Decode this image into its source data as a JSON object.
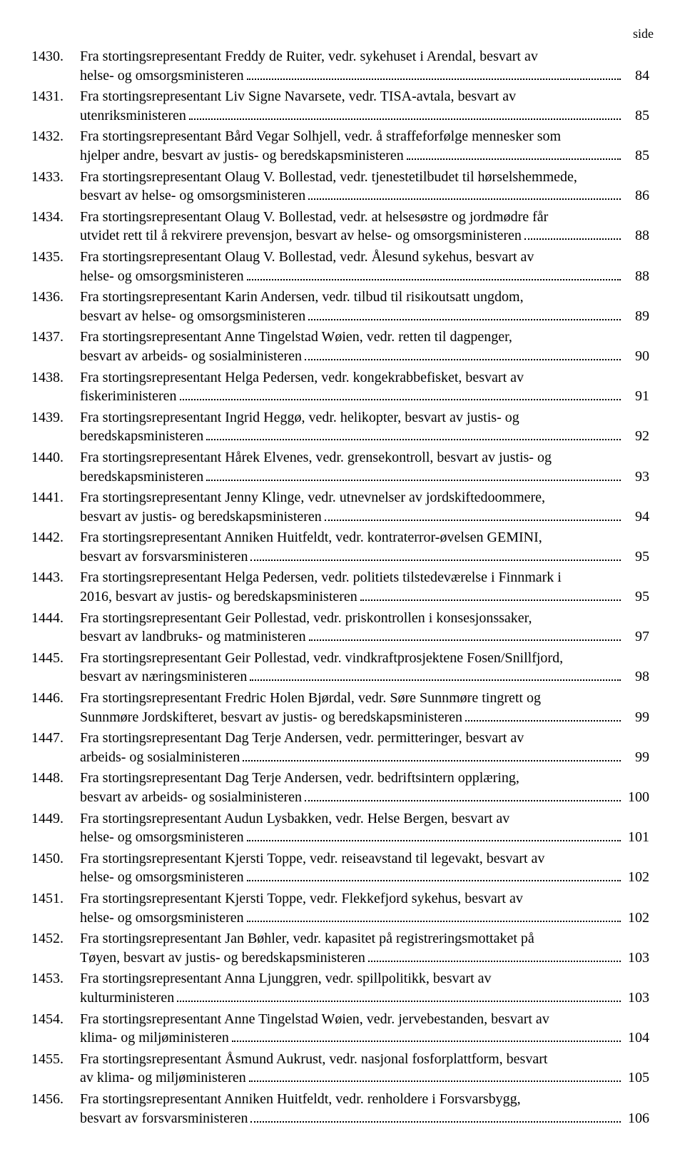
{
  "header_label": "side",
  "text_color": "#000000",
  "bg_color": "#ffffff",
  "base_fontsize": 20,
  "header_fontsize": 18,
  "line_height": 1.28,
  "leader_color": "#000000",
  "entries": [
    {
      "num": "1430.",
      "lines": [
        "Fra stortingsrepresentant Freddy de Ruiter, vedr. sykehuset i Arendal, besvart av"
      ],
      "tail": "helse- og omsorgsministeren",
      "page": "84"
    },
    {
      "num": "1431.",
      "lines": [
        "Fra stortingsrepresentant Liv Signe Navarsete, vedr. TISA-avtala, besvart av"
      ],
      "tail": "utenriksministeren",
      "page": "85"
    },
    {
      "num": "1432.",
      "lines": [
        "Fra stortingsrepresentant Bård Vegar Solhjell, vedr. å straffeforfølge mennesker som"
      ],
      "tail": "hjelper andre, besvart av justis- og beredskapsministeren",
      "page": "85"
    },
    {
      "num": "1433.",
      "lines": [
        "Fra stortingsrepresentant Olaug V. Bollestad, vedr. tjenestetilbudet til hørselshemmede,"
      ],
      "tail": "besvart av helse- og omsorgsministeren",
      "page": "86"
    },
    {
      "num": "1434.",
      "lines": [
        "Fra stortingsrepresentant Olaug V. Bollestad, vedr. at helsesøstre og jordmødre får"
      ],
      "tail": "utvidet rett til å rekvirere prevensjon, besvart av helse- og omsorgsministeren",
      "page": "88"
    },
    {
      "num": "1435.",
      "lines": [
        "Fra stortingsrepresentant Olaug V. Bollestad, vedr. Ålesund sykehus, besvart av"
      ],
      "tail": "helse- og omsorgsministeren",
      "page": "88"
    },
    {
      "num": "1436.",
      "lines": [
        "Fra stortingsrepresentant Karin Andersen, vedr. tilbud til risikoutsatt ungdom,"
      ],
      "tail": "besvart av helse- og omsorgsministeren",
      "page": "89"
    },
    {
      "num": "1437.",
      "lines": [
        "Fra stortingsrepresentant Anne Tingelstad Wøien, vedr. retten til dagpenger,"
      ],
      "tail": "besvart av arbeids- og sosialministeren",
      "page": "90"
    },
    {
      "num": "1438.",
      "lines": [
        "Fra stortingsrepresentant Helga Pedersen, vedr. kongekrabbefisket, besvart av"
      ],
      "tail": "fiskeriministeren",
      "page": "91"
    },
    {
      "num": "1439.",
      "lines": [
        "Fra stortingsrepresentant Ingrid Heggø, vedr. helikopter, besvart av justis- og"
      ],
      "tail": "beredskapsministeren",
      "page": "92"
    },
    {
      "num": "1440.",
      "lines": [
        "Fra stortingsrepresentant Hårek Elvenes, vedr. grensekontroll, besvart av justis- og"
      ],
      "tail": "beredskapsministeren",
      "page": "93"
    },
    {
      "num": "1441.",
      "lines": [
        "Fra stortingsrepresentant Jenny Klinge, vedr. utnevnelser av jordskiftedoommere,"
      ],
      "tail": "besvart av justis- og beredskapsministeren",
      "page": "94"
    },
    {
      "num": "1442.",
      "lines": [
        "Fra stortingsrepresentant Anniken Huitfeldt, vedr. kontraterror-øvelsen GEMINI,"
      ],
      "tail": "besvart av forsvarsministeren",
      "page": "95"
    },
    {
      "num": "1443.",
      "lines": [
        "Fra stortingsrepresentant Helga Pedersen, vedr. politiets tilstedeværelse i Finnmark i"
      ],
      "tail": "2016, besvart av justis- og beredskapsministeren",
      "page": "95"
    },
    {
      "num": "1444.",
      "lines": [
        "Fra stortingsrepresentant Geir Pollestad, vedr. priskontrollen i konsesjonssaker,"
      ],
      "tail": "besvart av landbruks- og matministeren",
      "page": "97"
    },
    {
      "num": "1445.",
      "lines": [
        "Fra stortingsrepresentant Geir Pollestad, vedr. vindkraftprosjektene Fosen/Snillfjord,"
      ],
      "tail": "besvart av næringsministeren",
      "page": "98"
    },
    {
      "num": "1446.",
      "lines": [
        "Fra stortingsrepresentant Fredric Holen Bjørdal, vedr. Søre Sunnmøre tingrett og"
      ],
      "tail": "Sunnmøre Jordskifteret, besvart av justis- og beredskapsministeren",
      "page": "99"
    },
    {
      "num": "1447.",
      "lines": [
        "Fra stortingsrepresentant Dag Terje Andersen, vedr. permitteringer, besvart av"
      ],
      "tail": "arbeids- og sosialministeren",
      "page": "99"
    },
    {
      "num": "1448.",
      "lines": [
        "Fra stortingsrepresentant Dag Terje Andersen, vedr. bedriftsintern opplæring,"
      ],
      "tail": "besvart av arbeids- og sosialministeren",
      "page": "100"
    },
    {
      "num": "1449.",
      "lines": [
        "Fra stortingsrepresentant Audun Lysbakken, vedr. Helse Bergen, besvart av"
      ],
      "tail": "helse- og omsorgsministeren",
      "page": "101"
    },
    {
      "num": "1450.",
      "lines": [
        "Fra stortingsrepresentant Kjersti Toppe, vedr.  reiseavstand til legevakt, besvart av"
      ],
      "tail": "helse- og omsorgsministeren",
      "page": "102"
    },
    {
      "num": "1451.",
      "lines": [
        "Fra stortingsrepresentant Kjersti Toppe, vedr. Flekkefjord sykehus, besvart av"
      ],
      "tail": "helse- og omsorgsministeren",
      "page": "102"
    },
    {
      "num": "1452.",
      "lines": [
        "Fra stortingsrepresentant Jan Bøhler, vedr. kapasitet på registreringsmottaket på"
      ],
      "tail": "Tøyen, besvart av justis- og beredskapsministeren",
      "page": "103"
    },
    {
      "num": "1453.",
      "lines": [
        "Fra stortingsrepresentant Anna Ljunggren, vedr. spillpolitikk, besvart av"
      ],
      "tail": "kulturministeren",
      "page": "103"
    },
    {
      "num": "1454.",
      "lines": [
        "Fra stortingsrepresentant Anne Tingelstad Wøien, vedr. jervebestanden, besvart av"
      ],
      "tail": "klima- og miljøministeren",
      "page": "104"
    },
    {
      "num": "1455.",
      "lines": [
        "Fra stortingsrepresentant Åsmund Aukrust, vedr. nasjonal fosforplattform, besvart"
      ],
      "tail": "av klima- og miljøministeren",
      "page": "105"
    },
    {
      "num": "1456.",
      "lines": [
        "Fra stortingsrepresentant Anniken Huitfeldt, vedr. renholdere i Forsvarsbygg,"
      ],
      "tail": "besvart av forsvarsministeren",
      "page": "106"
    }
  ]
}
